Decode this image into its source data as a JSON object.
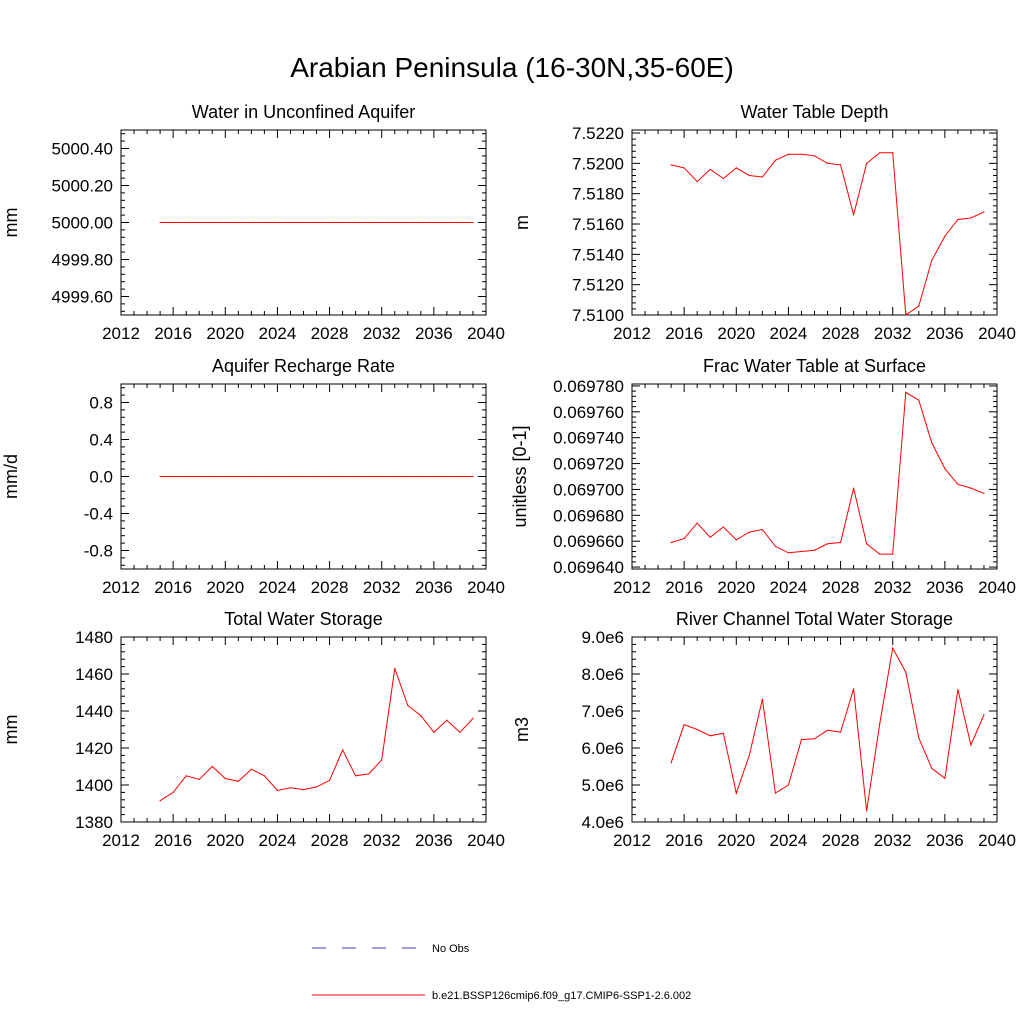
{
  "title": "Arabian Peninsula (16-30N,35-60E)",
  "legend": [
    {
      "label": "No Obs",
      "color": "#3b3bbf",
      "style": "dashed"
    },
    {
      "label": "b.e21.BSSP126cmip6.f09_g17.CMIP6-SSP1-2.6.002",
      "color": "#ff0000",
      "style": "solid"
    }
  ],
  "colors": {
    "series": "#ff0000",
    "axis": "#000000"
  },
  "chart_data": [
    {
      "type": "line",
      "title": "Water in Unconfined Aquifer",
      "ylabel": "mm",
      "xlim": [
        2012,
        2040
      ],
      "ylim": [
        4999.5,
        5000.5
      ],
      "xticks": [
        2012,
        2016,
        2020,
        2024,
        2028,
        2032,
        2036,
        2040
      ],
      "xtick_labels": [
        "2012",
        "2016",
        "2020",
        "2024",
        "2028",
        "2032",
        "2036",
        "2040"
      ],
      "yticks": [
        4999.6,
        4999.8,
        5000.0,
        5000.2,
        5000.4
      ],
      "ytick_labels": [
        "4999.60",
        "4999.80",
        "5000.00",
        "5000.20",
        "5000.40"
      ],
      "x": [
        2015,
        2016,
        2017,
        2018,
        2019,
        2020,
        2021,
        2022,
        2023,
        2024,
        2025,
        2026,
        2027,
        2028,
        2029,
        2030,
        2031,
        2032,
        2033,
        2034,
        2035,
        2036,
        2037,
        2038,
        2039
      ],
      "series": [
        {
          "values": [
            5000,
            5000,
            5000,
            5000,
            5000,
            5000,
            5000,
            5000,
            5000,
            5000,
            5000,
            5000,
            5000,
            5000,
            5000,
            5000,
            5000,
            5000,
            5000,
            5000,
            5000,
            5000,
            5000,
            5000,
            5000
          ]
        }
      ]
    },
    {
      "type": "line",
      "title": "Water Table Depth",
      "ylabel": "m",
      "xlim": [
        2012,
        2040
      ],
      "ylim": [
        7.51,
        7.5222
      ],
      "xticks": [
        2012,
        2016,
        2020,
        2024,
        2028,
        2032,
        2036,
        2040
      ],
      "xtick_labels": [
        "2012",
        "2016",
        "2020",
        "2024",
        "2028",
        "2032",
        "2036",
        "2040"
      ],
      "yticks": [
        7.51,
        7.512,
        7.514,
        7.516,
        7.518,
        7.52,
        7.522
      ],
      "ytick_labels": [
        "7.5100",
        "7.5120",
        "7.5140",
        "7.5160",
        "7.5180",
        "7.5200",
        "7.5220"
      ],
      "x": [
        2015,
        2016,
        2017,
        2018,
        2019,
        2020,
        2021,
        2022,
        2023,
        2024,
        2025,
        2026,
        2027,
        2028,
        2029,
        2030,
        2031,
        2032,
        2033,
        2034,
        2035,
        2036,
        2037,
        2038,
        2039
      ],
      "series": [
        {
          "values": [
            7.5199,
            7.5197,
            7.5188,
            7.5196,
            7.519,
            7.5197,
            7.5192,
            7.5191,
            7.5202,
            7.5206,
            7.5206,
            7.5205,
            7.52,
            7.5199,
            7.5166,
            7.52,
            7.5207,
            7.5207,
            7.51,
            7.5106,
            7.5136,
            7.5152,
            7.5163,
            7.5164,
            7.5168
          ]
        }
      ]
    },
    {
      "type": "line",
      "title": "Aquifer Recharge Rate",
      "ylabel": "mm/d",
      "xlim": [
        2012,
        2040
      ],
      "ylim": [
        -1,
        1
      ],
      "xticks": [
        2012,
        2016,
        2020,
        2024,
        2028,
        2032,
        2036,
        2040
      ],
      "xtick_labels": [
        "2012",
        "2016",
        "2020",
        "2024",
        "2028",
        "2032",
        "2036",
        "2040"
      ],
      "yticks": [
        -0.8,
        -0.4,
        0.0,
        0.4,
        0.8
      ],
      "ytick_labels": [
        "-0.8",
        "-0.4",
        "0.0",
        "0.4",
        "0.8"
      ],
      "x": [
        2015,
        2016,
        2017,
        2018,
        2019,
        2020,
        2021,
        2022,
        2023,
        2024,
        2025,
        2026,
        2027,
        2028,
        2029,
        2030,
        2031,
        2032,
        2033,
        2034,
        2035,
        2036,
        2037,
        2038,
        2039
      ],
      "series": [
        {
          "values": [
            0,
            0,
            0,
            0,
            0,
            0,
            0,
            0,
            0,
            0,
            0,
            0,
            0,
            0,
            0,
            0,
            0,
            0,
            0,
            0,
            0,
            0,
            0,
            0,
            0
          ]
        }
      ]
    },
    {
      "type": "line",
      "title": "Frac Water Table at Surface",
      "ylabel": "unitless [0-1]",
      "xlim": [
        2012,
        2040
      ],
      "ylim": [
        0.0696385,
        0.0697815
      ],
      "xticks": [
        2012,
        2016,
        2020,
        2024,
        2028,
        2032,
        2036,
        2040
      ],
      "xtick_labels": [
        "2012",
        "2016",
        "2020",
        "2024",
        "2028",
        "2032",
        "2036",
        "2040"
      ],
      "yticks": [
        0.06964,
        0.06966,
        0.06968,
        0.0697,
        0.06972,
        0.06974,
        0.06976,
        0.06978
      ],
      "ytick_labels": [
        "0.069640",
        "0.069660",
        "0.069680",
        "0.069700",
        "0.069720",
        "0.069740",
        "0.069760",
        "0.069780"
      ],
      "x": [
        2015,
        2016,
        2017,
        2018,
        2019,
        2020,
        2021,
        2022,
        2023,
        2024,
        2025,
        2026,
        2027,
        2028,
        2029,
        2030,
        2031,
        2032,
        2033,
        2034,
        2035,
        2036,
        2037,
        2038,
        2039
      ],
      "series": [
        {
          "values": [
            0.069659,
            0.069662,
            0.069674,
            0.069663,
            0.069671,
            0.069661,
            0.069667,
            0.069669,
            0.069656,
            0.069651,
            0.069652,
            0.069653,
            0.069658,
            0.069659,
            0.069701,
            0.069658,
            0.06965,
            0.06965,
            0.069775,
            0.069769,
            0.069736,
            0.069716,
            0.069704,
            0.069701,
            0.069697
          ]
        }
      ]
    },
    {
      "type": "line",
      "title": "Total Water Storage",
      "ylabel": "mm",
      "xlim": [
        2012,
        2040
      ],
      "ylim": [
        1380,
        1480
      ],
      "xticks": [
        2012,
        2016,
        2020,
        2024,
        2028,
        2032,
        2036,
        2040
      ],
      "xtick_labels": [
        "2012",
        "2016",
        "2020",
        "2024",
        "2028",
        "2032",
        "2036",
        "2040"
      ],
      "yticks": [
        1380,
        1400,
        1420,
        1440,
        1460,
        1480
      ],
      "ytick_labels": [
        "1380",
        "1400",
        "1420",
        "1440",
        "1460",
        "1480"
      ],
      "x": [
        2015,
        2016,
        2017,
        2018,
        2019,
        2020,
        2021,
        2022,
        2023,
        2024,
        2025,
        2026,
        2027,
        2028,
        2029,
        2030,
        2031,
        2032,
        2033,
        2034,
        2035,
        2036,
        2037,
        2038,
        2039
      ],
      "series": [
        {
          "values": [
            1391.5,
            1396,
            1405,
            1403,
            1410,
            1403.5,
            1402,
            1408.5,
            1405,
            1397,
            1398.5,
            1397.5,
            1399,
            1402.5,
            1419,
            1405,
            1406,
            1413.5,
            1463,
            1443,
            1437.5,
            1428.5,
            1435,
            1428.5,
            1436
          ]
        }
      ]
    },
    {
      "type": "line",
      "title": "River Channel Total Water Storage",
      "ylabel": "m3",
      "xlim": [
        2012,
        2040
      ],
      "ylim": [
        4000000,
        9000000
      ],
      "xticks": [
        2012,
        2016,
        2020,
        2024,
        2028,
        2032,
        2036,
        2040
      ],
      "xtick_labels": [
        "2012",
        "2016",
        "2020",
        "2024",
        "2028",
        "2032",
        "2036",
        "2040"
      ],
      "yticks": [
        4000000,
        5000000,
        6000000,
        7000000,
        8000000,
        9000000
      ],
      "ytick_labels": [
        "4.0e6",
        "5.0e6",
        "6.0e6",
        "7.0e6",
        "8.0e6",
        "9.0e6"
      ],
      "x": [
        2015,
        2016,
        2017,
        2018,
        2019,
        2020,
        2021,
        2022,
        2023,
        2024,
        2025,
        2026,
        2027,
        2028,
        2029,
        2030,
        2031,
        2032,
        2033,
        2034,
        2035,
        2036,
        2037,
        2038,
        2039
      ],
      "series": [
        {
          "values": [
            5600000,
            6630000,
            6500000,
            6330000,
            6400000,
            4780000,
            5800000,
            7320000,
            4780000,
            5000000,
            6230000,
            6250000,
            6480000,
            6430000,
            7600000,
            4300000,
            6650000,
            8700000,
            8050000,
            6270000,
            5450000,
            5180000,
            7580000,
            6080000,
            6900000
          ]
        }
      ]
    }
  ]
}
